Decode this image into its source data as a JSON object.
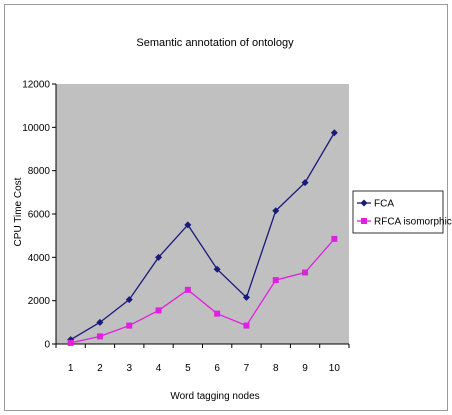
{
  "chart_data": {
    "type": "line",
    "title": "Semantic annotation of ontology",
    "xlabel": "Word tagging nodes",
    "ylabel": "CPU Time Cost",
    "categories": [
      "1",
      "2",
      "3",
      "4",
      "5",
      "6",
      "7",
      "8",
      "9",
      "10"
    ],
    "ylim": [
      0,
      12000
    ],
    "yticks": [
      "0",
      "2000",
      "4000",
      "6000",
      "8000",
      "10000",
      "12000"
    ],
    "grid": false,
    "legend_position": "right",
    "plot_background": "#c0c0c0",
    "series": [
      {
        "name": "FCA",
        "color": "#1a1a7a",
        "marker": "diamond",
        "values": [
          200,
          1000,
          2050,
          4000,
          5500,
          3450,
          2150,
          6150,
          7450,
          9750
        ]
      },
      {
        "name": "RFCA isomorphic",
        "color": "#e020e0",
        "marker": "square",
        "values": [
          50,
          350,
          850,
          1550,
          2500,
          1400,
          850,
          2950,
          3300,
          4850
        ]
      }
    ]
  }
}
